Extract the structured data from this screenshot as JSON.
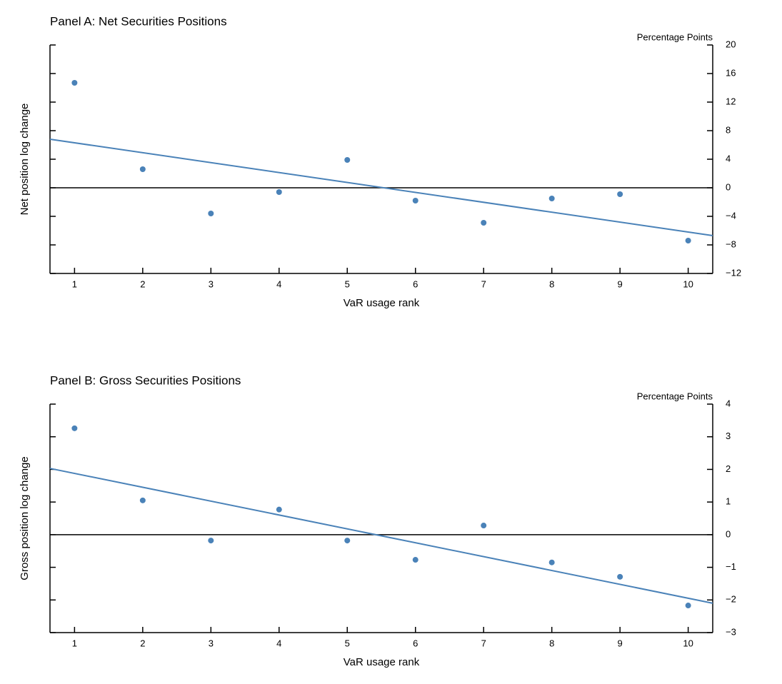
{
  "chart_data": [
    {
      "type": "scatter",
      "title": "Panel A: Net Securities Positions",
      "x_label": "VaR usage rank",
      "y_label": "Net position log change",
      "y_unit_label": "Percentage Points",
      "x": [
        1,
        2,
        3,
        4,
        5,
        6,
        7,
        8,
        9,
        10
      ],
      "values": [
        14.7,
        2.6,
        -3.6,
        -0.6,
        3.9,
        -1.8,
        -4.9,
        -1.5,
        -0.9,
        -7.4
      ],
      "color": "#4a82b8",
      "fit": {
        "x": [
          0.64,
          10.36
        ],
        "values": [
          6.8,
          -6.7
        ],
        "color": "#4a82b8"
      },
      "hline": 0,
      "xlim": [
        0.64,
        10.36
      ],
      "xticks": [
        1,
        2,
        3,
        4,
        5,
        6,
        7,
        8,
        9,
        10
      ],
      "ylim": [
        -12,
        20
      ],
      "yticks": [
        {
          "value": -12,
          "label": "−12"
        },
        {
          "value": -8,
          "label": "−8"
        },
        {
          "value": -4,
          "label": "−4"
        },
        0,
        4,
        8,
        12,
        16,
        20
      ]
    },
    {
      "type": "scatter",
      "title": "Panel B: Gross Securities Positions",
      "x_label": "VaR usage rank",
      "y_label": "Gross position log change",
      "y_unit_label": "Percentage Points",
      "x": [
        1,
        2,
        3,
        4,
        5,
        6,
        7,
        8,
        9,
        10
      ],
      "values": [
        3.26,
        1.05,
        -0.18,
        0.77,
        -0.18,
        -0.77,
        0.28,
        -0.85,
        -1.29,
        -2.17
      ],
      "color": "#4a82b8",
      "fit": {
        "x": [
          0.64,
          10.36
        ],
        "values": [
          2.03,
          -2.1
        ],
        "color": "#4a82b8"
      },
      "hline": 0,
      "xlim": [
        0.64,
        10.36
      ],
      "xticks": [
        1,
        2,
        3,
        4,
        5,
        6,
        7,
        8,
        9,
        10
      ],
      "ylim": [
        -3,
        4
      ],
      "yticks": [
        {
          "value": -3,
          "label": "−3"
        },
        {
          "value": -2,
          "label": "−2"
        },
        {
          "value": -1,
          "label": "−1"
        },
        0,
        1,
        2,
        3,
        4
      ]
    }
  ]
}
